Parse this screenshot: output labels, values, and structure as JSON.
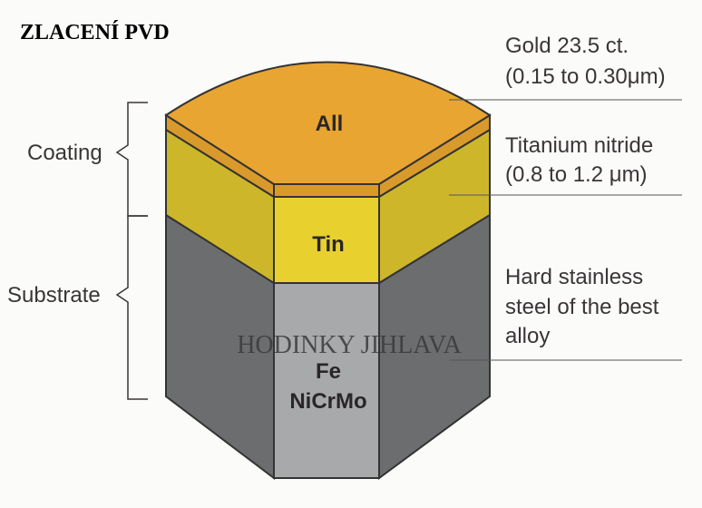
{
  "title": "ZLACENÍ PVD",
  "watermark": "HODINKY JIHLAVA",
  "groups": {
    "coating": "Coating",
    "substrate": "Substrate"
  },
  "layers": {
    "gold": {
      "label": "All",
      "desc1": "Gold 23.5 ct.",
      "desc2": "(0.15 to 0.30μm)",
      "color": "#e8a531"
    },
    "tin": {
      "label": "Tin",
      "desc1": "Titanium nitride",
      "desc2": "(0.8 to 1.2 μm)",
      "color": "#e2cb2c"
    },
    "steel": {
      "label1": "Fe",
      "label2": "NiCrMo",
      "desc1": "Hard stainless",
      "desc2": "steel of the best",
      "desc3": "alloy",
      "color": "#a8a9ab"
    }
  }
}
